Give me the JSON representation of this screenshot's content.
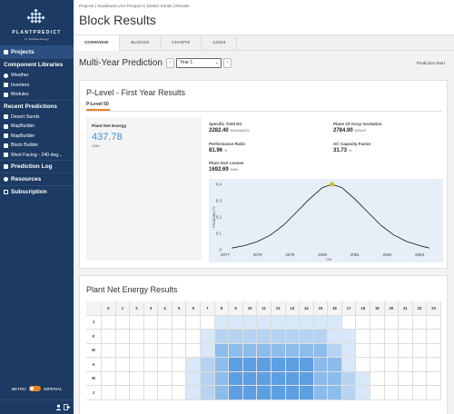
{
  "app": {
    "logo_text": "PLANTPREDICT",
    "logo_sub": "by Terabase Energy"
  },
  "sidebar": {
    "projects": "Projects",
    "component_libraries": "Component Libraries",
    "libraries": [
      {
        "label": "Weather",
        "icon": "globe-icon"
      },
      {
        "label": "Inverters",
        "icon": "grid-icon"
      },
      {
        "label": "Modules",
        "icon": "panel-icon"
      }
    ],
    "recent_predictions": "Recent Predictions",
    "recent": [
      {
        "label": "Desert Sands"
      },
      {
        "label": "MapBuilder"
      },
      {
        "label": "MapBuilder"
      },
      {
        "label": "Block Builder"
      },
      {
        "label": "West Facing - 240 deg..."
      }
    ],
    "prediction_log": "Prediction Log",
    "resources": "Resources",
    "subscription": "Subscription",
    "units_metric": "METRIC",
    "units_imperial": "IMPERIAL"
  },
  "breadcrumb": {
    "text": "Projects  |  Southeast USA Prospect  |  Desert Sands  |  Results"
  },
  "page": {
    "title": "Block Results"
  },
  "tabs": [
    {
      "label": "OVERVIEW",
      "active": true
    },
    {
      "label": "BLOCKS",
      "active": false
    },
    {
      "label": "CHARTS",
      "active": false
    },
    {
      "label": "12X24",
      "active": false
    }
  ],
  "prediction": {
    "title": "Multi-Year Prediction",
    "year_selected": "Year 1",
    "start_label": "Prediction Start"
  },
  "plevel": {
    "card_title": "P-Level - First Year Results",
    "tab_label": "P-Level 50",
    "energy_label": "Plant Net Energy",
    "energy_value": "437.78",
    "energy_unit": "GWh",
    "metrics": [
      {
        "label": "Specific Yield DC",
        "value": "2282.40",
        "unit": "kWh/kWp/DC"
      },
      {
        "label": "Plane Of Array Insolation",
        "value": "2784.90",
        "unit": "kWh/m²"
      },
      {
        "label": "Performance Ratio",
        "value": "81.96",
        "unit": "%"
      },
      {
        "label": "AC Capacity Factor",
        "value": "31.73",
        "unit": "%"
      },
      {
        "label": "Plant AUX Losses",
        "value": "1692.69",
        "unit": "MWh"
      }
    ]
  },
  "chart_data": {
    "type": "line",
    "title": "",
    "xlabel": "GHI",
    "ylabel": "PROBABILITY",
    "xlim": [
      2077,
      2083.5
    ],
    "ylim": [
      0,
      0.4
    ],
    "xticks": [
      "2077",
      "2078",
      "2079",
      "2080",
      "2081",
      "2082",
      "2083"
    ],
    "yticks": [
      "0",
      "0.1",
      "0.2",
      "0.3",
      "0.4"
    ],
    "series": [
      {
        "values_x": [
          2077.2,
          2077.6,
          2078.0,
          2078.4,
          2078.8,
          2079.2,
          2079.6,
          2080.0,
          2080.3,
          2080.6,
          2081.0,
          2081.4,
          2081.8,
          2082.2,
          2082.6,
          2083.0,
          2083.3
        ],
        "values_y": [
          0.01,
          0.025,
          0.05,
          0.09,
          0.15,
          0.23,
          0.31,
          0.38,
          0.4,
          0.38,
          0.31,
          0.23,
          0.15,
          0.09,
          0.05,
          0.025,
          0.01
        ]
      }
    ],
    "marker": {
      "x": 2080.3,
      "y": 0.4
    },
    "colors": {
      "line": "#111111",
      "marker": "#c8c81e",
      "background": "#e6eff8"
    }
  },
  "heatmap": {
    "title": "Plant Net Energy Results",
    "hours": [
      "0",
      "1",
      "2",
      "3",
      "4",
      "5",
      "6",
      "7",
      "8",
      "9",
      "10",
      "11",
      "12",
      "13",
      "14",
      "15",
      "16",
      "17",
      "18",
      "19",
      "20",
      "21",
      "22",
      "23"
    ],
    "months": [
      "J",
      "F",
      "M",
      "A",
      "M",
      "J"
    ],
    "levels": [
      [
        0,
        0,
        0,
        0,
        0,
        0,
        0,
        0,
        1,
        1,
        1,
        1,
        1,
        1,
        1,
        1,
        1,
        0,
        0,
        0,
        0,
        0,
        0,
        0
      ],
      [
        0,
        0,
        0,
        0,
        0,
        0,
        0,
        1,
        2,
        2,
        2,
        2,
        2,
        2,
        2,
        2,
        1,
        1,
        0,
        0,
        0,
        0,
        0,
        0
      ],
      [
        0,
        0,
        0,
        0,
        0,
        0,
        0,
        1,
        3,
        3,
        3,
        3,
        3,
        3,
        3,
        3,
        2,
        1,
        0,
        0,
        0,
        0,
        0,
        0
      ],
      [
        0,
        0,
        0,
        0,
        0,
        0,
        1,
        2,
        3,
        4,
        4,
        4,
        4,
        4,
        4,
        3,
        3,
        1,
        0,
        0,
        0,
        0,
        0,
        0
      ],
      [
        0,
        0,
        0,
        0,
        0,
        0,
        1,
        2,
        3,
        4,
        4,
        4,
        4,
        4,
        4,
        3,
        3,
        2,
        1,
        0,
        0,
        0,
        0,
        0
      ],
      [
        0,
        0,
        0,
        0,
        0,
        0,
        1,
        2,
        3,
        4,
        4,
        4,
        4,
        4,
        4,
        3,
        3,
        2,
        1,
        0,
        0,
        0,
        0,
        0
      ]
    ],
    "colors": [
      "#ffffff",
      "#d8e8f8",
      "#b6d4f2",
      "#8cbcec",
      "#5d9fe3"
    ]
  }
}
